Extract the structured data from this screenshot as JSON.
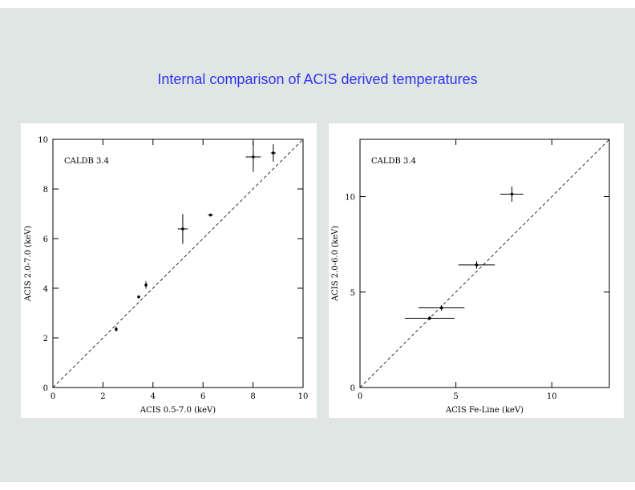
{
  "title": "Internal comparison of ACIS derived temperatures",
  "chart_data": [
    {
      "type": "scatter",
      "annotation": "CALDB 3.4",
      "x_label": "ACIS 0.5-7.0 (keV)",
      "y_label": "ACIS 2.0-7.0 (keV)",
      "x": [
        2.53,
        3.43,
        3.72,
        5.19,
        6.3,
        8.01,
        8.81
      ],
      "values": [
        2.35,
        3.65,
        4.13,
        6.39,
        6.95,
        9.29,
        9.45
      ],
      "xerr": [
        0,
        0,
        0.05,
        0.2,
        0.1,
        0.3,
        0.1
      ],
      "yerr": [
        0.1,
        0.05,
        0.15,
        0.6,
        0.05,
        0.6,
        0.35
      ],
      "xlim": [
        0,
        10
      ],
      "ylim": [
        0,
        10
      ],
      "xticks": [
        0,
        2,
        4,
        6,
        8,
        10
      ],
      "yticks": [
        0,
        2,
        4,
        6,
        8,
        10
      ],
      "identity_line": true,
      "color": "#000000"
    },
    {
      "type": "scatter",
      "annotation": "CALDB 3.4",
      "x_label": "ACIS Fe-Line (keV)",
      "y_label": "ACIS 2.0-6.0 (keV)",
      "x": [
        3.63,
        4.25,
        6.08,
        7.92
      ],
      "values": [
        3.63,
        4.17,
        6.42,
        10.13
      ],
      "xerr": [
        1.3,
        1.2,
        0.95,
        0.6
      ],
      "yerr": [
        0.1,
        0.15,
        0.2,
        0.4
      ],
      "xlim": [
        0,
        13
      ],
      "ylim": [
        0,
        13
      ],
      "xticks": [
        0,
        5,
        10
      ],
      "yticks": [
        0,
        5,
        10
      ],
      "identity_line": true,
      "color": "#000000"
    }
  ]
}
